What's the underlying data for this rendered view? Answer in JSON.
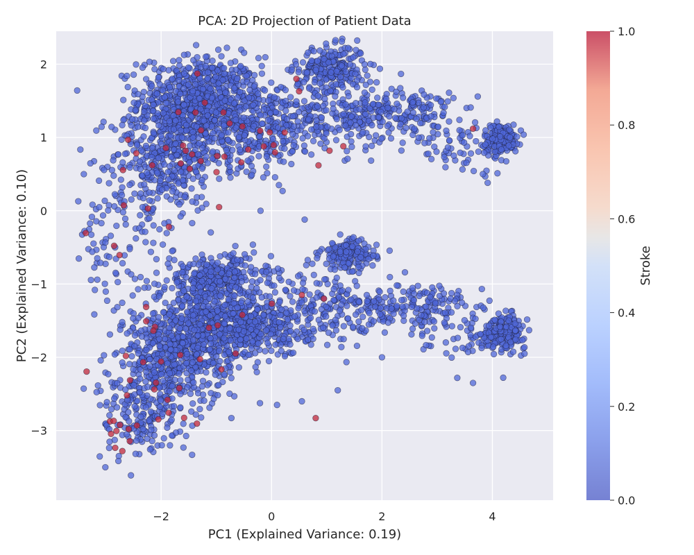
{
  "chart_data": {
    "type": "scatter",
    "title": "PCA: 2D Projection of Patient Data",
    "xlabel": "PC1 (Explained Variance: 0.19)",
    "ylabel": "PC2 (Explained Variance: 0.10)",
    "xlim": [
      -3.9,
      5.1
    ],
    "ylim": [
      -3.95,
      2.45
    ],
    "x_ticks": [
      -2,
      0,
      2,
      4
    ],
    "x_tick_labels": [
      "−2",
      "0",
      "2",
      "4"
    ],
    "y_ticks": [
      -3,
      -2,
      -1,
      0,
      1,
      2
    ],
    "y_tick_labels": [
      "−3",
      "−2",
      "−1",
      "0",
      "1",
      "2"
    ],
    "grid": true,
    "colorbar": {
      "label": "Stroke",
      "range": [
        0,
        1
      ],
      "ticks": [
        0.0,
        0.2,
        0.4,
        0.6,
        0.8,
        1.0
      ],
      "tick_labels": [
        "0.0",
        "0.2",
        "0.4",
        "0.6",
        "0.8",
        "1.0"
      ],
      "colormap": "coolwarm"
    },
    "colors": {
      "class_0": "#4f67d8",
      "class_1": "#c0283c",
      "background": "#eaeaf2",
      "grid": "#ffffff"
    },
    "clusters": [
      {
        "stroke": 0,
        "count": 700,
        "center": [
          -1.3,
          1.5
        ],
        "spread": [
          0.55,
          0.3
        ]
      },
      {
        "stroke": 0,
        "count": 350,
        "center": [
          -1.9,
          0.75
        ],
        "spread": [
          0.5,
          0.35
        ]
      },
      {
        "stroke": 0,
        "count": 300,
        "center": [
          -0.3,
          1.15
        ],
        "spread": [
          0.55,
          0.3
        ]
      },
      {
        "stroke": 0,
        "count": 220,
        "center": [
          1.1,
          1.95
        ],
        "spread": [
          0.3,
          0.15
        ]
      },
      {
        "stroke": 0,
        "count": 200,
        "center": [
          1.0,
          1.3
        ],
        "spread": [
          0.55,
          0.25
        ]
      },
      {
        "stroke": 0,
        "count": 180,
        "center": [
          2.3,
          1.35
        ],
        "spread": [
          0.5,
          0.18
        ]
      },
      {
        "stroke": 0,
        "count": 200,
        "center": [
          4.15,
          0.98
        ],
        "spread": [
          0.15,
          0.1
        ]
      },
      {
        "stroke": 0,
        "count": 60,
        "center": [
          3.4,
          0.9
        ],
        "spread": [
          0.45,
          0.2
        ]
      },
      {
        "stroke": 0,
        "count": 80,
        "center": [
          -2.4,
          0.0
        ],
        "spread": [
          0.5,
          0.35
        ]
      },
      {
        "stroke": 0,
        "count": 280,
        "center": [
          -1.0,
          -0.9
        ],
        "spread": [
          0.5,
          0.15
        ]
      },
      {
        "stroke": 0,
        "count": 600,
        "center": [
          -1.2,
          -1.6
        ],
        "spread": [
          0.6,
          0.3
        ]
      },
      {
        "stroke": 0,
        "count": 350,
        "center": [
          -1.9,
          -2.1
        ],
        "spread": [
          0.45,
          0.35
        ]
      },
      {
        "stroke": 0,
        "count": 250,
        "center": [
          -0.2,
          -1.6
        ],
        "spread": [
          0.45,
          0.2
        ]
      },
      {
        "stroke": 0,
        "count": 150,
        "center": [
          1.4,
          -0.6
        ],
        "spread": [
          0.25,
          0.1
        ]
      },
      {
        "stroke": 0,
        "count": 180,
        "center": [
          1.0,
          -1.35
        ],
        "spread": [
          0.6,
          0.25
        ]
      },
      {
        "stroke": 0,
        "count": 150,
        "center": [
          2.5,
          -1.3
        ],
        "spread": [
          0.6,
          0.15
        ]
      },
      {
        "stroke": 0,
        "count": 200,
        "center": [
          4.2,
          -1.65
        ],
        "spread": [
          0.2,
          0.11
        ]
      },
      {
        "stroke": 0,
        "count": 60,
        "center": [
          3.3,
          -1.6
        ],
        "spread": [
          0.45,
          0.25
        ]
      },
      {
        "stroke": 0,
        "count": 150,
        "center": [
          -2.4,
          -2.8
        ],
        "spread": [
          0.35,
          0.3
        ]
      },
      {
        "stroke": 0,
        "count": 30,
        "center": [
          -3.0,
          -0.7
        ],
        "spread": [
          0.25,
          0.3
        ]
      },
      {
        "stroke": 1,
        "count": 22,
        "center": [
          -1.8,
          0.9
        ],
        "spread": [
          0.6,
          0.4
        ]
      },
      {
        "stroke": 1,
        "count": 10,
        "center": [
          -0.5,
          1.0
        ],
        "spread": [
          0.8,
          0.35
        ]
      },
      {
        "stroke": 1,
        "count": 18,
        "center": [
          -2.1,
          -2.2
        ],
        "spread": [
          0.4,
          0.4
        ]
      },
      {
        "stroke": 1,
        "count": 10,
        "center": [
          -2.8,
          -3.1
        ],
        "spread": [
          0.25,
          0.25
        ]
      },
      {
        "stroke": 1,
        "count": 8,
        "center": [
          -1.2,
          -1.7
        ],
        "spread": [
          0.6,
          0.3
        ]
      },
      {
        "stroke": 1,
        "count": 4,
        "center": [
          -3.1,
          -0.7
        ],
        "spread": [
          0.25,
          0.3
        ]
      }
    ],
    "extra_points": [
      {
        "x": 0.8,
        "y": -2.83,
        "stroke": 1
      },
      {
        "x": 0.85,
        "y": 0.62,
        "stroke": 1
      },
      {
        "x": 0.45,
        "y": 1.8,
        "stroke": 1
      },
      {
        "x": 0.5,
        "y": 1.63,
        "stroke": 1
      },
      {
        "x": 1.05,
        "y": 0.82,
        "stroke": 1
      },
      {
        "x": 1.3,
        "y": 0.88,
        "stroke": 1
      },
      {
        "x": 3.65,
        "y": 1.12,
        "stroke": 1
      },
      {
        "x": 0.95,
        "y": -1.2,
        "stroke": 1
      },
      {
        "x": 0.55,
        "y": -1.15,
        "stroke": 1
      },
      {
        "x": -0.95,
        "y": 0.05,
        "stroke": 1
      },
      {
        "x": 3.65,
        "y": -2.35,
        "stroke": 0
      },
      {
        "x": 0.1,
        "y": -2.65,
        "stroke": 0
      },
      {
        "x": 0.55,
        "y": -2.6,
        "stroke": 0
      },
      {
        "x": 1.2,
        "y": -2.45,
        "stroke": 0
      },
      {
        "x": 2.0,
        "y": -2.0,
        "stroke": 0
      },
      {
        "x": -1.8,
        "y": -0.55,
        "stroke": 0
      },
      {
        "x": -0.2,
        "y": 0.0,
        "stroke": 0
      },
      {
        "x": 0.2,
        "y": 0.27,
        "stroke": 0
      },
      {
        "x": 0.6,
        "y": -0.12,
        "stroke": 0
      },
      {
        "x": -3.5,
        "y": 0.13,
        "stroke": 0
      },
      {
        "x": -3.4,
        "y": 0.5,
        "stroke": 0
      },
      {
        "x": -3.2,
        "y": -1.08,
        "stroke": 0
      }
    ]
  }
}
